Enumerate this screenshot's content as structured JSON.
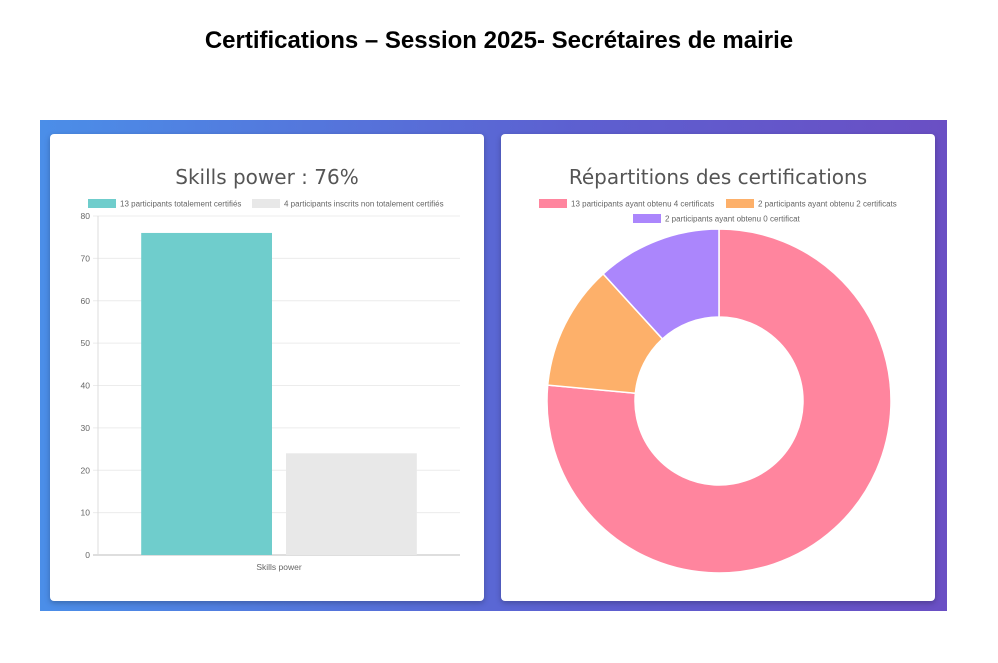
{
  "page": {
    "title": "Certifications – Session 2025- Secrétaires de mairie"
  },
  "chart_data": [
    {
      "type": "bar",
      "title": "Skills power : 76%",
      "categories": [
        "Skills power"
      ],
      "series": [
        {
          "name": "13 participants totalement certifiés",
          "values": [
            76
          ],
          "color": "#6fcdcc"
        },
        {
          "name": "4 participants inscrits non totalement certifiés",
          "values": [
            24
          ],
          "color": "#e8e8e8"
        }
      ],
      "ylim": [
        0,
        80
      ],
      "yticks": [
        0,
        10,
        20,
        30,
        40,
        50,
        60,
        70,
        80
      ],
      "xlabel": "",
      "ylabel": "",
      "grid": true,
      "legend": "top"
    },
    {
      "type": "pie",
      "title": "Répartitions des certifications",
      "labels": [
        "13 participants ayant obtenu 4 certificats",
        "2 participants ayant obtenu 2 certificats",
        "2 participants ayant obtenu 0 certificat"
      ],
      "values": [
        13,
        2,
        2
      ],
      "colors": [
        "#ff859e",
        "#fdb06a",
        "#ab86fc"
      ],
      "legend": "top"
    }
  ]
}
